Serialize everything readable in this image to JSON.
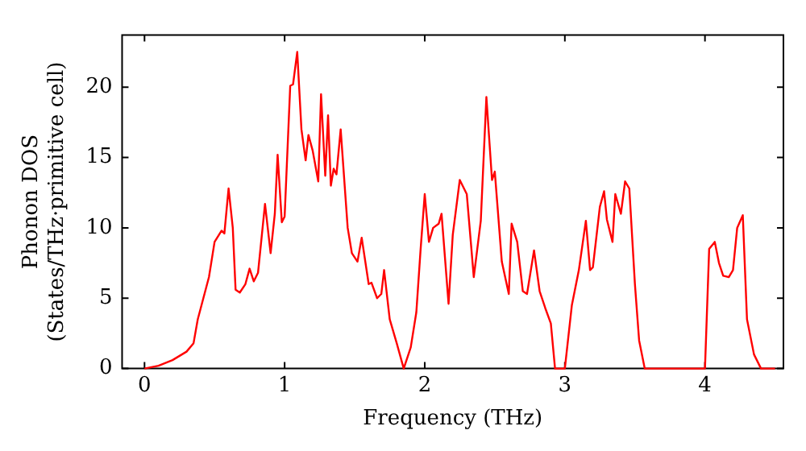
{
  "chart_data": {
    "type": "line",
    "xlabel": "Frequency (THz)",
    "ylabel": "Phonon DOS\n(States/THz·primitive cell)",
    "xlim": [
      -0.16,
      4.56
    ],
    "ylim": [
      0,
      23.7
    ],
    "xticks": [
      0,
      1,
      2,
      3,
      4
    ],
    "yticks": [
      0,
      5,
      10,
      15,
      20
    ],
    "grid": false,
    "legend": false,
    "marker": "none",
    "line_style": "solid",
    "x": [
      0,
      0.1,
      0.2,
      0.3,
      0.35,
      0.38,
      0.42,
      0.46,
      0.5,
      0.55,
      0.57,
      0.6,
      0.63,
      0.65,
      0.68,
      0.72,
      0.75,
      0.78,
      0.81,
      0.86,
      0.9,
      0.93,
      0.95,
      0.98,
      1.0,
      1.04,
      1.06,
      1.09,
      1.12,
      1.15,
      1.17,
      1.2,
      1.24,
      1.26,
      1.29,
      1.31,
      1.33,
      1.35,
      1.37,
      1.4,
      1.45,
      1.48,
      1.52,
      1.55,
      1.6,
      1.62,
      1.66,
      1.69,
      1.71,
      1.75,
      1.8,
      1.85,
      1.9,
      1.94,
      1.97,
      2.0,
      2.03,
      2.06,
      2.1,
      2.12,
      2.17,
      2.2,
      2.25,
      2.3,
      2.35,
      2.4,
      2.44,
      2.48,
      2.5,
      2.55,
      2.6,
      2.62,
      2.66,
      2.7,
      2.73,
      2.78,
      2.82,
      2.86,
      2.9,
      2.93,
      3.0,
      3.05,
      3.1,
      3.15,
      3.18,
      3.2,
      3.25,
      3.28,
      3.3,
      3.34,
      3.36,
      3.4,
      3.43,
      3.46,
      3.5,
      3.53,
      3.57,
      4.0,
      4.03,
      4.07,
      4.1,
      4.13,
      4.17,
      4.2,
      4.23,
      4.27,
      4.3,
      4.35,
      4.4,
      4.5
    ],
    "series": [
      {
        "color": "#ff0000",
        "values": [
          0,
          0.2,
          0.6,
          1.2,
          1.8,
          3.5,
          5,
          6.5,
          9,
          9.8,
          9.6,
          12.8,
          10,
          5.6,
          5.4,
          6,
          7.1,
          6.2,
          6.8,
          11.7,
          8.2,
          11,
          15.2,
          10.4,
          10.8,
          20.1,
          20.2,
          22.5,
          17,
          14.8,
          16.6,
          15.5,
          13.3,
          19.5,
          13.7,
          18,
          13,
          14.2,
          13.8,
          17,
          10,
          8.2,
          7.6,
          9.3,
          6,
          6.1,
          5,
          5.3,
          7,
          3.5,
          1.8,
          0,
          1.5,
          4,
          8.4,
          12.4,
          9,
          10,
          10.3,
          11,
          4.6,
          9.5,
          13.4,
          12.4,
          6.5,
          10.5,
          19.3,
          13.4,
          14,
          7.6,
          5.3,
          10.3,
          9,
          5.5,
          5.3,
          8.4,
          5.5,
          4.3,
          3.2,
          0,
          0,
          4.5,
          7,
          10.5,
          7,
          7.2,
          11.5,
          12.6,
          10.6,
          9,
          12.4,
          11,
          13.3,
          12.8,
          6,
          2,
          0,
          0,
          8.5,
          9,
          7.5,
          6.6,
          6.5,
          7,
          10,
          10.9,
          3.5,
          1,
          0,
          0
        ]
      }
    ]
  }
}
